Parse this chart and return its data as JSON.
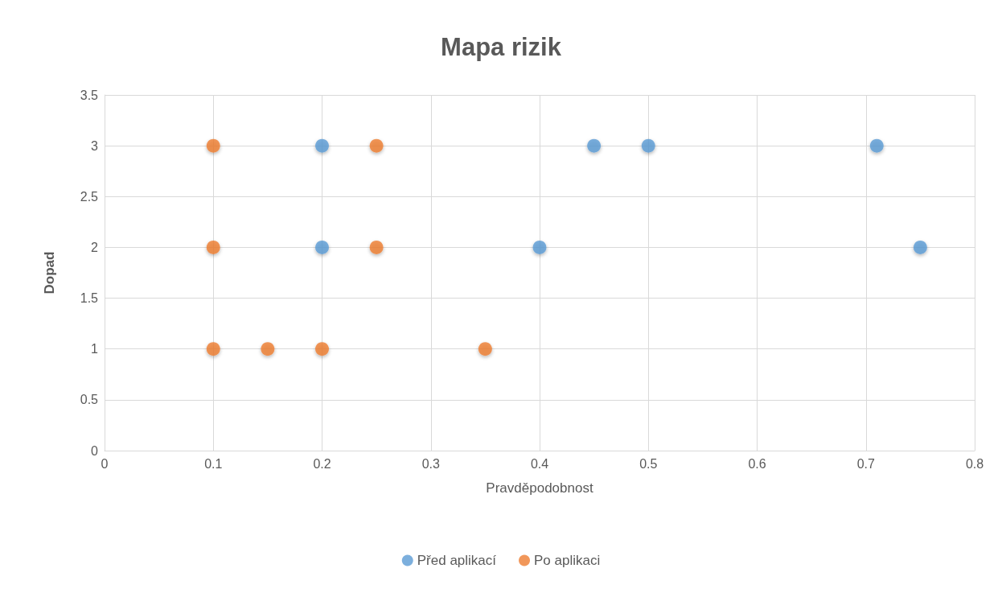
{
  "chart_data": {
    "type": "scatter",
    "title": "Mapa rizik",
    "xlabel": "Pravděpodobnost",
    "ylabel": "Dopad",
    "series": [
      {
        "name": "Před aplikací",
        "color": "#5b9bd5",
        "x": [
          0.2,
          0.45,
          0.5,
          0.71,
          0.2,
          0.4,
          0.75
        ],
        "values": [
          3,
          3,
          3,
          3,
          2,
          2,
          2
        ]
      },
      {
        "name": "Po aplikaci",
        "color": "#ed7d31",
        "x": [
          0.1,
          0.25,
          0.1,
          0.25,
          0.1,
          0.15,
          0.2,
          0.35
        ],
        "values": [
          3,
          3,
          2,
          2,
          1,
          1,
          1,
          1
        ]
      }
    ],
    "xlim": [
      0,
      0.8
    ],
    "xticks": [
      0,
      0.1,
      0.2,
      0.3,
      0.4,
      0.5,
      0.6,
      0.7,
      0.8
    ],
    "ylim": [
      0,
      3.5
    ],
    "yticks": [
      0,
      0.5,
      1,
      1.5,
      2,
      2.5,
      3,
      3.5
    ],
    "grid": true,
    "legend": "bottom",
    "marker": "circle"
  }
}
